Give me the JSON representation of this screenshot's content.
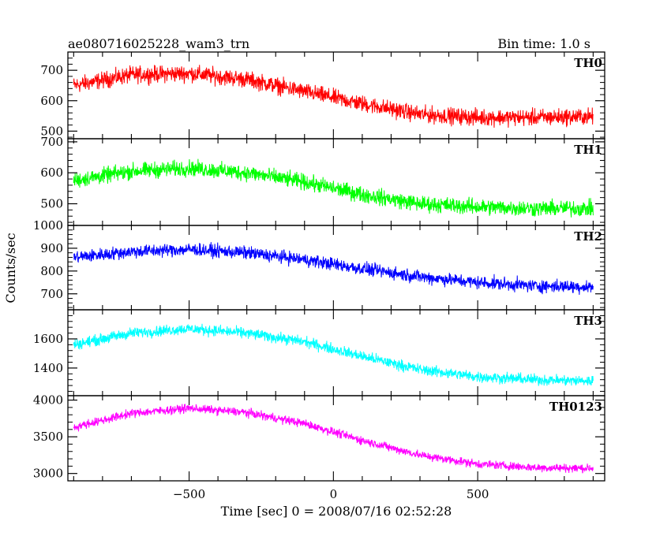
{
  "header": {
    "title": "ae080716025228_wam3_trn",
    "bin_time": "Bin time: 1.0 s"
  },
  "chart_data": {
    "type": "line",
    "title": "ae080716025228_wam3_trn",
    "subtitle": "Bin time: 1.0 s",
    "xlabel": "Time [sec] 0 = 2008/07/16 02:52:28",
    "ylabel": "Counts/sec",
    "xlim": [
      -920,
      940
    ],
    "x_ticks": [
      -500,
      0,
      500
    ],
    "x_tick_labels": [
      "−500",
      "0",
      "500"
    ],
    "x_data_range": [
      -900,
      900
    ],
    "bin_time_s": 1.0,
    "panels": [
      {
        "name": "TH0",
        "color": "#ff0000",
        "ylim": [
          475,
          760
        ],
        "y_ticks": [
          500,
          600,
          700
        ],
        "y_tick_labels": [
          "500",
          "600",
          "700"
        ],
        "trend": {
          "x": [
            -900,
            -700,
            -500,
            -300,
            -100,
            100,
            300,
            500,
            700,
            900
          ],
          "y": [
            650,
            685,
            690,
            670,
            630,
            590,
            555,
            545,
            545,
            548
          ]
        },
        "noise_amplitude": 40
      },
      {
        "name": "TH1",
        "color": "#00ff00",
        "ylim": [
          430,
          710
        ],
        "y_ticks": [
          500,
          600,
          700
        ],
        "y_tick_labels": [
          "500",
          "600",
          "700"
        ],
        "trend": {
          "x": [
            -900,
            -700,
            -500,
            -300,
            -100,
            100,
            300,
            500,
            700,
            900
          ],
          "y": [
            575,
            605,
            615,
            600,
            570,
            530,
            500,
            490,
            485,
            485
          ]
        },
        "noise_amplitude": 38
      },
      {
        "name": "TH2",
        "color": "#0000ff",
        "ylim": [
          630,
          1000
        ],
        "y_ticks": [
          700,
          800,
          900,
          1000
        ],
        "y_tick_labels": [
          "700",
          "800",
          "900",
          "1000"
        ],
        "trend": {
          "x": [
            -900,
            -700,
            -500,
            -300,
            -100,
            100,
            300,
            500,
            700,
            900
          ],
          "y": [
            860,
            885,
            895,
            880,
            850,
            810,
            775,
            750,
            735,
            730
          ]
        },
        "noise_amplitude": 42
      },
      {
        "name": "TH3",
        "color": "#00ffff",
        "ylim": [
          1210,
          1800
        ],
        "y_ticks": [
          1400,
          1600
        ],
        "y_tick_labels": [
          "1400",
          "1600"
        ],
        "trend": {
          "x": [
            -900,
            -700,
            -500,
            -300,
            -100,
            100,
            300,
            500,
            700,
            900
          ],
          "y": [
            1560,
            1640,
            1670,
            1640,
            1580,
            1480,
            1390,
            1340,
            1320,
            1310
          ]
        },
        "noise_amplitude": 55
      },
      {
        "name": "TH0123",
        "color": "#ff00ff",
        "ylim": [
          2900,
          4060
        ],
        "y_ticks": [
          3000,
          3500,
          4000
        ],
        "y_tick_labels": [
          "3000",
          "3500",
          "4000"
        ],
        "trend": {
          "x": [
            -900,
            -700,
            -500,
            -300,
            -100,
            100,
            300,
            500,
            700,
            900
          ],
          "y": [
            3630,
            3820,
            3890,
            3830,
            3680,
            3450,
            3250,
            3130,
            3080,
            3070
          ]
        },
        "noise_amplitude": 85
      }
    ],
    "grid": false,
    "legend": "none"
  }
}
